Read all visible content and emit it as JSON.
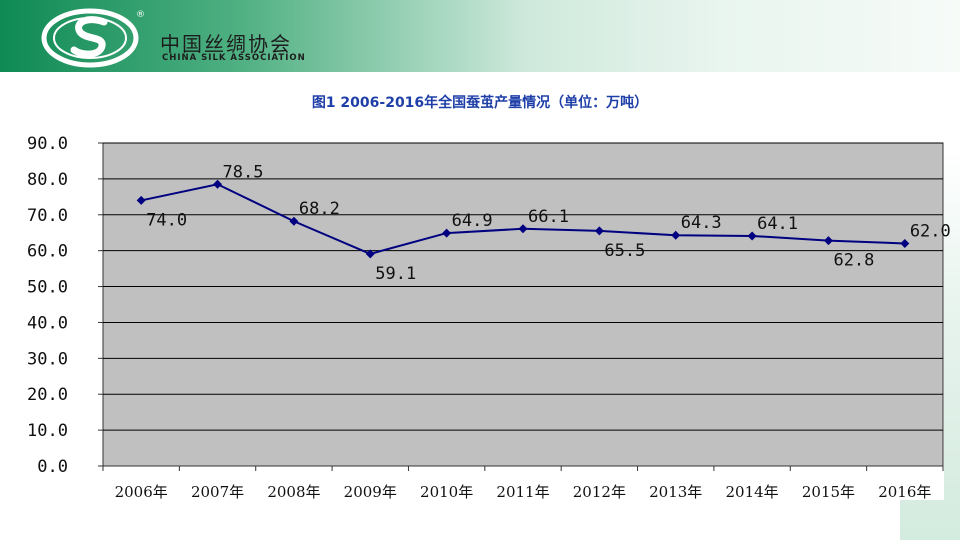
{
  "header": {
    "org_name_cn": "中国丝绸协会",
    "org_name_en": "CHINA SILK ASSOCIATION",
    "registered_mark": "®",
    "logo_icon": "silk-s-logo-icon",
    "accent_color": "#0f8a55"
  },
  "chart_data": {
    "type": "line",
    "title": "图1 2006-2016年全国蚕茧产量情况（单位：万吨）",
    "xlabel": "",
    "ylabel": "",
    "categories": [
      "2006年",
      "2007年",
      "2008年",
      "2009年",
      "2010年",
      "2011年",
      "2012年",
      "2013年",
      "2014年",
      "2015年",
      "2016年"
    ],
    "series": [
      {
        "values": [
          74.0,
          78.5,
          68.2,
          59.1,
          64.9,
          66.1,
          65.5,
          64.3,
          64.1,
          62.8,
          62.0
        ]
      }
    ],
    "data_labels": [
      "74.0",
      "78.5",
      "68.2",
      "59.1",
      "64.9",
      "66.1",
      "65.5",
      "64.3",
      "64.1",
      "62.8",
      "62.0"
    ],
    "y_ticks": [
      "0.0",
      "10.0",
      "20.0",
      "30.0",
      "40.0",
      "50.0",
      "60.0",
      "70.0",
      "80.0",
      "90.0"
    ],
    "ylim": [
      0,
      90
    ],
    "grid": true,
    "legend": "none",
    "colors": {
      "line": "#000080",
      "plot_background": "#c0c0c0",
      "gridline": "#000000"
    }
  }
}
